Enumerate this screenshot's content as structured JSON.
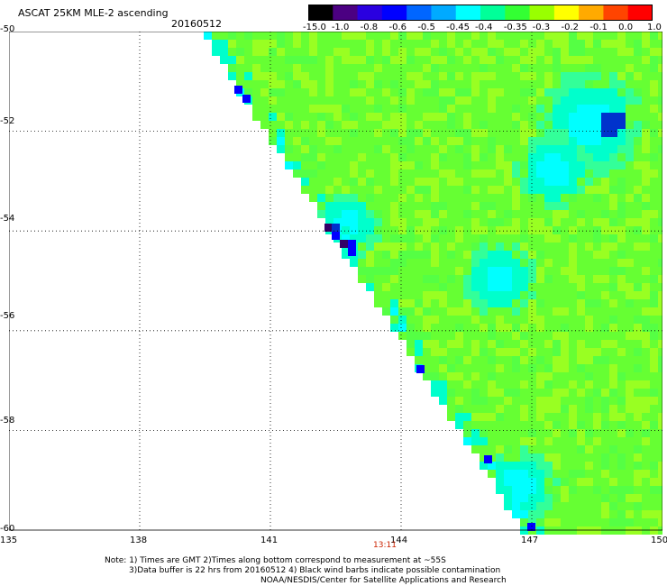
{
  "header": {
    "title": "ASCAT 25KM MLE-2 ascending",
    "date": "20160512"
  },
  "colorbar": {
    "labels": [
      "-15.0",
      "-1.0",
      "-0.8",
      "-0.6",
      "-0.5",
      "-0.45",
      "-0.4",
      "-0.35",
      "-0.3",
      "-0.2",
      "-0.1",
      "0.0",
      "1.0"
    ],
    "colors": [
      "#000000",
      "#4b0082",
      "#2a00e0",
      "#0000ff",
      "#0066ff",
      "#00aaff",
      "#00ffff",
      "#00ff99",
      "#33ff33",
      "#99ff00",
      "#ffff00",
      "#ffaa00",
      "#ff4400",
      "#ff0000"
    ]
  },
  "map": {
    "lat_labels": [
      "-50",
      "-52",
      "-54",
      "-56",
      "-58",
      "-60"
    ],
    "lon_labels": [
      "135",
      "138",
      "141",
      "144",
      "147",
      "150"
    ],
    "time_label": "13:11",
    "palette": {
      "green": "#66ff33",
      "lime": "#99ff22",
      "teal": "#33ff99",
      "cyan": "#00ffcc",
      "aqua": "#00ffff",
      "blue": "#0000ff",
      "darkblue": "#0033cc",
      "purple": "#330066"
    }
  },
  "notes": {
    "line1": "Note: 1) Times are GMT 2)Times along bottom correspond to measurement at ~55S",
    "line2": "3)Data buffer is 22 hrs from 20160512 4) Black wind barbs indicate possible contamination",
    "line3": "NOAA/NESDIS/Center for Satellite Applications and Research"
  }
}
